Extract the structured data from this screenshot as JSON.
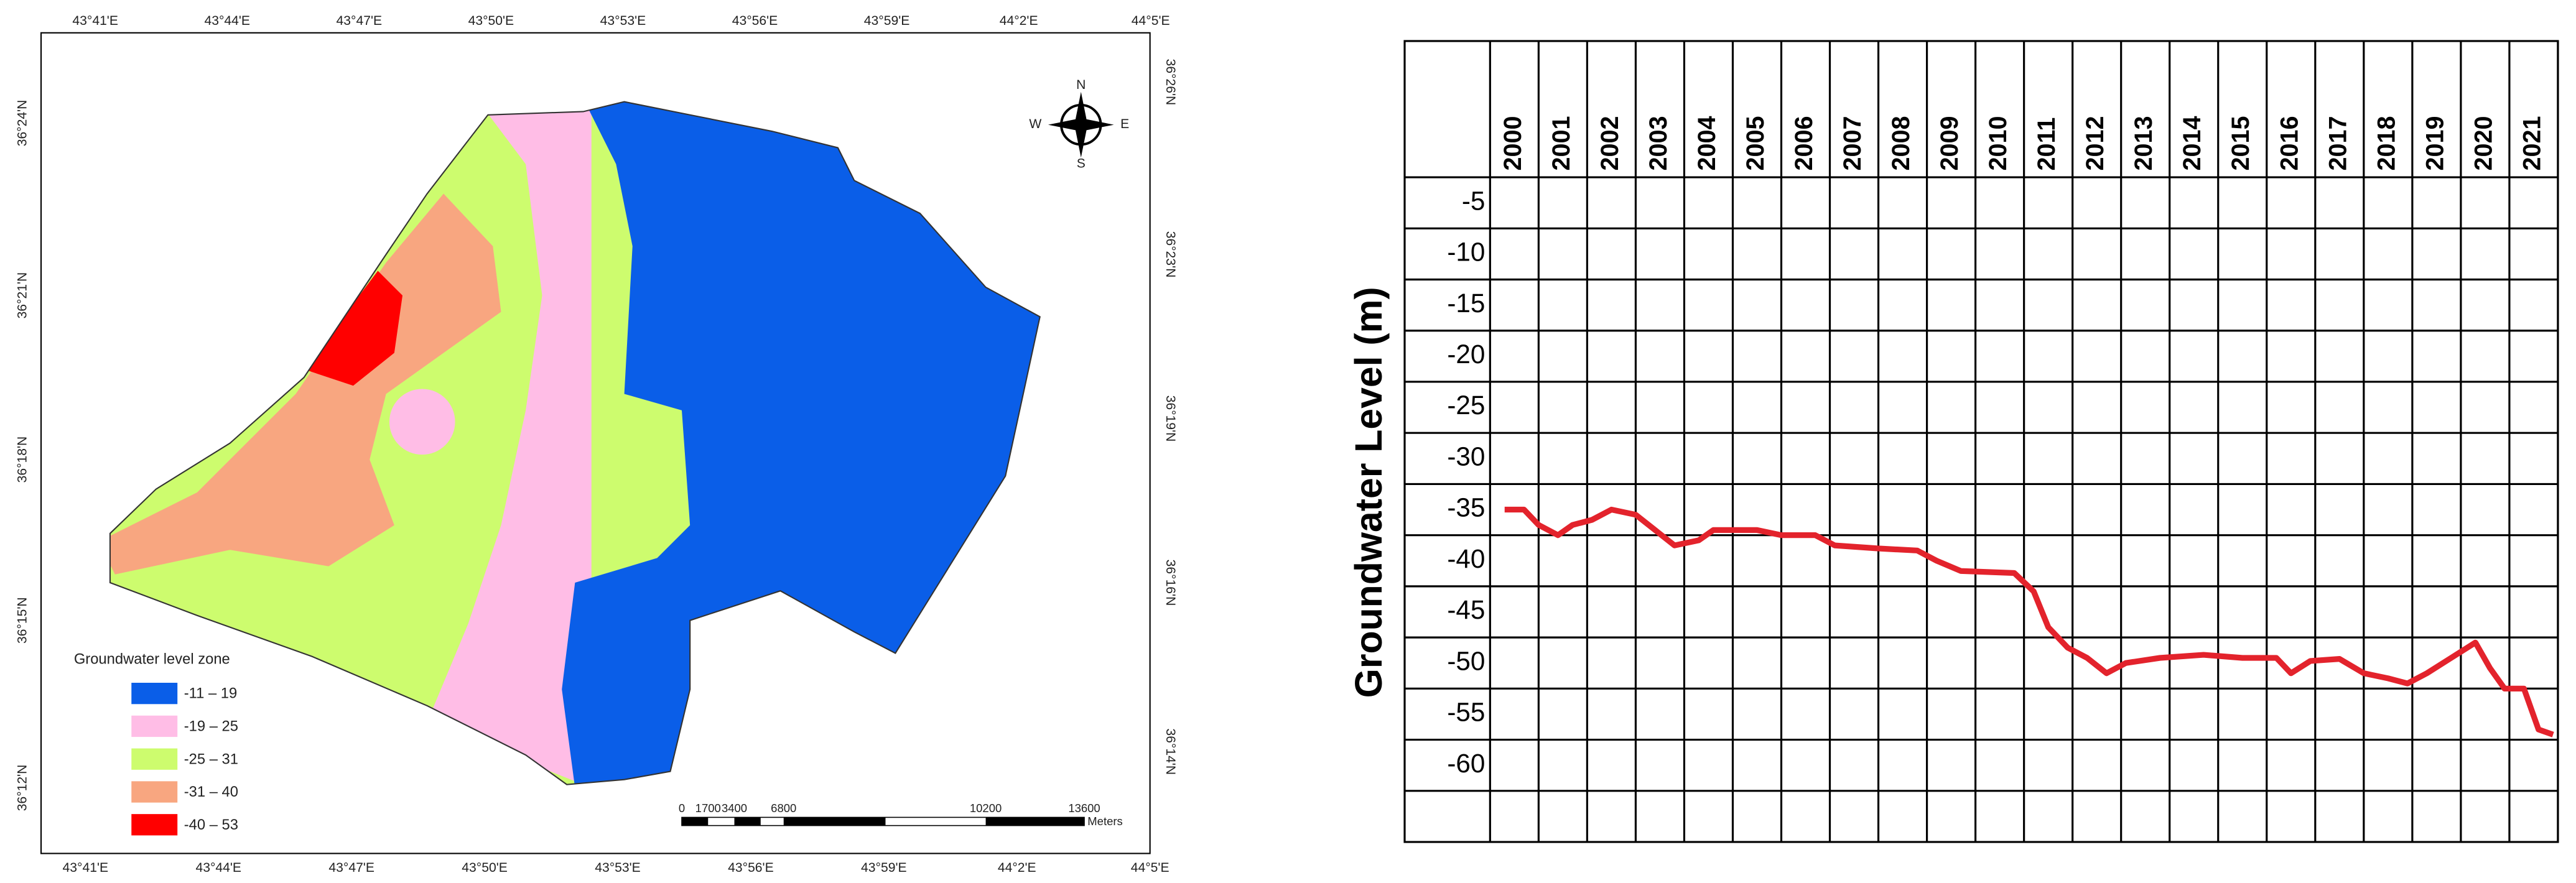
{
  "map": {
    "lon_top": [
      "43°41'E",
      "43°44'E",
      "43°47'E",
      "43°50'E",
      "43°53'E",
      "43°56'E",
      "43°59'E",
      "44°2'E",
      "44°5'E"
    ],
    "lon_bottom": [
      "43°41'E",
      "43°44'E",
      "43°47'E",
      "43°50'E",
      "43°53'E",
      "43°56'E",
      "43°59'E",
      "44°2'E",
      "44°5'E"
    ],
    "lat_left": [
      "36°24'N",
      "36°21'N",
      "36°18'N",
      "36°15'N",
      "36°12'N"
    ],
    "lat_right": [
      "36°26'N",
      "36°23'N",
      "36°19'N",
      "36°16'N",
      "36°14'N"
    ],
    "legend": {
      "title": "Groundwater level zone",
      "items": [
        {
          "label": "-11 – 19",
          "color": "#0a5ee8"
        },
        {
          "label": "-19 – 25",
          "color": "#ffbde6"
        },
        {
          "label": "-25 – 31",
          "color": "#cdfc6e"
        },
        {
          "label": "-31 – 40",
          "color": "#f8a680"
        },
        {
          "label": "-40 – 53",
          "color": "#ff0000"
        }
      ]
    },
    "scale": {
      "labels": [
        "0",
        "1700",
        "3400",
        "6800",
        "10200",
        "13600"
      ],
      "unit": "Meters"
    },
    "compass": {
      "n": "N",
      "e": "E",
      "s": "S",
      "w": "W"
    }
  },
  "chart_data": {
    "type": "line",
    "y_label": "Groundwater Level (m)",
    "color": "#e3232c",
    "xticks": [
      2000,
      2001,
      2002,
      2003,
      2004,
      2005,
      2006,
      2007,
      2008,
      2009,
      2010,
      2011,
      2012,
      2013,
      2014,
      2015,
      2016,
      2017,
      2018,
      2019,
      2020,
      2021
    ],
    "xlim": [
      1999.5,
      2021.5
    ],
    "yticks": [
      -5,
      -10,
      -15,
      -20,
      -25,
      -30,
      -35,
      -40,
      -45,
      -50,
      -55,
      -60
    ],
    "ylim": [
      -2.5,
      -67.5
    ],
    "x": [
      1999.8,
      2000.2,
      2000.5,
      2000.9,
      2001.2,
      2001.6,
      2002.0,
      2002.5,
      2002.9,
      2003.3,
      2003.8,
      2004.1,
      2005.0,
      2005.5,
      2006.2,
      2006.6,
      2007.5,
      2008.3,
      2008.7,
      2009.2,
      2010.3,
      2010.7,
      2011.0,
      2011.4,
      2011.8,
      2012.2,
      2012.6,
      2013.3,
      2014.2,
      2015.0,
      2015.7,
      2016.0,
      2016.4,
      2017.0,
      2017.5,
      2018.0,
      2018.4,
      2018.8,
      2019.3,
      2019.8,
      2020.1,
      2020.4,
      2020.8,
      2021.1,
      2021.4
    ],
    "values": [
      -35,
      -35,
      -36.5,
      -37.5,
      -36.5,
      -36,
      -35,
      -35.5,
      -37,
      -38.5,
      -38,
      -37,
      -37,
      -37.5,
      -37.5,
      -38.5,
      -38.8,
      -39,
      -40,
      -41,
      -41.2,
      -43,
      -46.5,
      -48.5,
      -49.5,
      -51,
      -50,
      -49.5,
      -49.2,
      -49.5,
      -49.5,
      -51,
      -49.8,
      -49.6,
      -51,
      -51.5,
      -52,
      -51,
      -49.5,
      -48,
      -50.5,
      -52.5,
      -52.5,
      -56.5,
      -57
    ]
  }
}
